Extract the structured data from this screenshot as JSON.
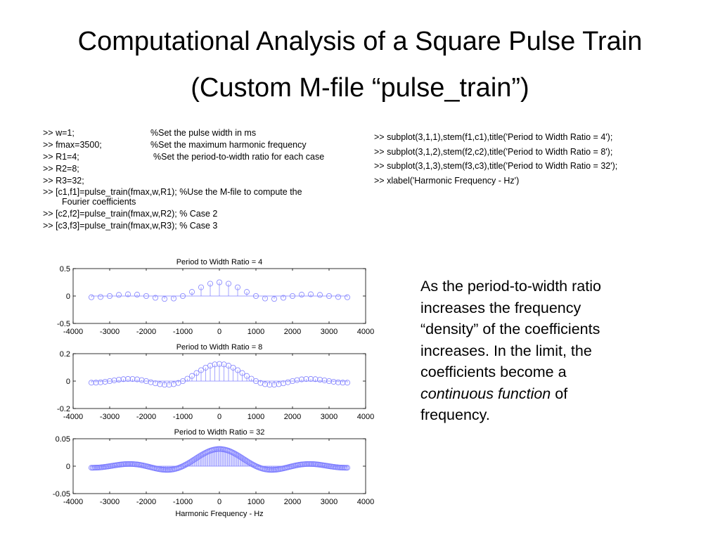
{
  "slide": {
    "title_line1": "Computational Analysis of a Square Pulse Train",
    "title_line2": "(Custom M-file “pulse_train”)"
  },
  "code_left": [
    {
      "cmd": ">> w=1;",
      "comment": "%Set the pulse width in ms"
    },
    {
      "cmd": ">> fmax=3500;",
      "comment": "%Set the maximum harmonic frequency"
    },
    {
      "cmd": ">> R1=4;",
      "comment": "%Set the period-to-width ratio for each case"
    },
    {
      "cmd": ">> R2=8;",
      "comment": ""
    },
    {
      "cmd": ">> R3=32;",
      "comment": ""
    },
    {
      "cmd": ">> [c1,f1]=pulse_train(fmax,w,R1);  %Use the M-file to compute the",
      "cont": "Fourier coefficients"
    },
    {
      "cmd": ">> [c2,f2]=pulse_train(fmax,w,R2);   % Case 2"
    },
    {
      "cmd": ">> [c3,f3]=pulse_train(fmax,w,R3);    % Case 3"
    }
  ],
  "code_right": [
    ">> subplot(3,1,1),stem(f1,c1),title('Period to Width Ratio = 4');",
    ">> subplot(3,1,2),stem(f2,c2),title('Period to Width Ratio = 8');",
    ">> subplot(3,1,3),stem(f3,c3),title('Period to Width Ratio = 32');",
    ">> xlabel('Harmonic Frequency - Hz')"
  ],
  "note": {
    "text_before": "As the period-to-width ratio increases the frequency “density” of the coefficients increases.  In the limit, the coefficients become a ",
    "italic": "continuous function",
    "text_after": " of frequency."
  },
  "colors": {
    "stem": "#8080ff",
    "axis": "#000000"
  },
  "chart_data": [
    {
      "type": "stem",
      "title": "Period to Width Ratio = 4",
      "xlabel": "",
      "xlim": [
        -4000,
        4000
      ],
      "ylim": [
        -0.5,
        0.5
      ],
      "xticks": [
        "-4000",
        "-3000",
        "-2000",
        "-1000",
        "0",
        "1000",
        "2000",
        "3000",
        "4000"
      ],
      "yticks": [
        "0.5",
        "0",
        "-0.5"
      ],
      "series": [
        {
          "pulse_width_ms": 1,
          "period_to_width_ratio": 4,
          "fmax_hz": 3500
        }
      ]
    },
    {
      "type": "stem",
      "title": "Period to Width Ratio = 8",
      "xlabel": "",
      "xlim": [
        -4000,
        4000
      ],
      "ylim": [
        -0.2,
        0.2
      ],
      "xticks": [
        "-4000",
        "-3000",
        "-2000",
        "-1000",
        "0",
        "1000",
        "2000",
        "3000",
        "4000"
      ],
      "yticks": [
        "0.2",
        "0",
        "-0.2"
      ],
      "series": [
        {
          "pulse_width_ms": 1,
          "period_to_width_ratio": 8,
          "fmax_hz": 3500
        }
      ]
    },
    {
      "type": "stem",
      "title": "Period to Width Ratio = 32",
      "xlabel": "Harmonic Frequency - Hz",
      "xlim": [
        -4000,
        4000
      ],
      "ylim": [
        -0.05,
        0.05
      ],
      "xticks": [
        "-4000",
        "-3000",
        "-2000",
        "-1000",
        "0",
        "1000",
        "2000",
        "3000",
        "4000"
      ],
      "yticks": [
        "0.05",
        "0",
        "-0.05"
      ],
      "series": [
        {
          "pulse_width_ms": 1,
          "period_to_width_ratio": 32,
          "fmax_hz": 3500
        }
      ]
    }
  ]
}
